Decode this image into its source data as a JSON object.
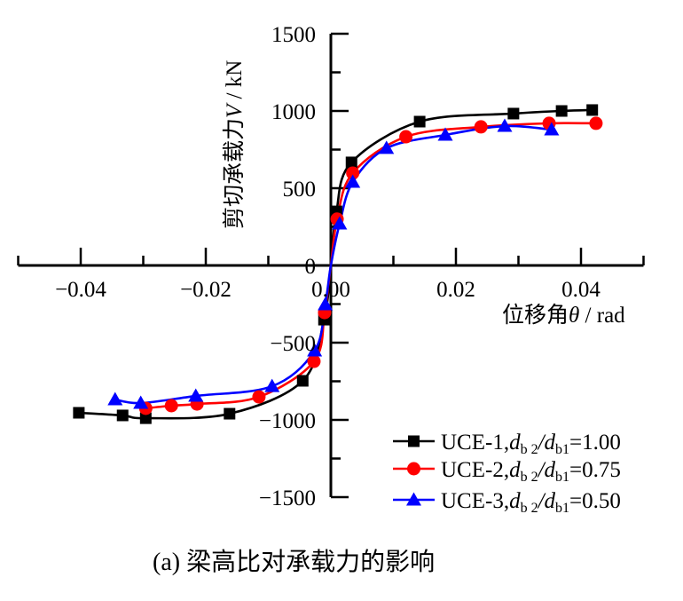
{
  "chart_data": {
    "type": "line",
    "title": "",
    "caption": "(a)  梁高比对承载力的影响",
    "xlabel": {
      "prefix": "位移角",
      "symbol": "θ",
      "unit": " / rad"
    },
    "ylabel": {
      "prefix": "剪切承载力",
      "symbol": "V",
      "unit": " / kN"
    },
    "xlim": [
      -0.05,
      0.05
    ],
    "ylim": [
      -1500,
      1500
    ],
    "xticks": [
      -0.04,
      -0.02,
      0.0,
      0.02,
      0.04
    ],
    "xtick_labels": [
      "−0.04",
      "−0.02",
      "0.00",
      "0.02",
      "0.04"
    ],
    "yticks": [
      1500,
      1000,
      500,
      0,
      -500,
      -1000,
      -1500
    ],
    "ytick_labels": [
      "1500",
      "1000",
      "500",
      "0",
      "−500",
      "−1000",
      "−1500"
    ],
    "grid": false,
    "legend_position": "bottom-right",
    "series": [
      {
        "name": "UCE-1",
        "label_prefix": "UCE-1,",
        "ratio": "1.00",
        "color": "#000000",
        "marker": "square",
        "x": [
          -0.0403,
          -0.0333,
          -0.0296,
          -0.0162,
          -0.0045,
          -0.0011,
          0.0009,
          0.0033,
          0.0142,
          0.0292,
          0.0369,
          0.0418
        ],
        "y": [
          -954,
          -971,
          -989,
          -960,
          -747,
          -351,
          350,
          667,
          931,
          983,
          1000,
          1006
        ]
      },
      {
        "name": "UCE-2",
        "label_prefix": "UCE-2,",
        "ratio": "0.75",
        "color": "#ff0000",
        "marker": "circle",
        "x": [
          -0.0296,
          -0.0255,
          -0.0214,
          -0.0115,
          -0.0027,
          -0.001,
          0.001,
          0.0035,
          0.012,
          0.024,
          0.0349,
          0.0424
        ],
        "y": [
          -925,
          -908,
          -897,
          -851,
          -621,
          -305,
          300,
          598,
          833,
          897,
          920,
          920
        ]
      },
      {
        "name": "UCE-3",
        "label_prefix": "UCE-3,",
        "ratio": "0.50",
        "color": "#0000ff",
        "marker": "triangle",
        "x": [
          -0.0345,
          -0.0304,
          -0.0216,
          -0.0094,
          -0.0026,
          -0.0009,
          0.0014,
          0.0035,
          0.0089,
          0.0183,
          0.0278,
          0.0353
        ],
        "y": [
          -868,
          -891,
          -845,
          -782,
          -552,
          -253,
          270,
          540,
          759,
          845,
          902,
          879
        ]
      }
    ],
    "legend_math": {
      "d": "d",
      "sub_b2": "b 2",
      "slash": "/",
      "sub_b1": "b1",
      "eq": "="
    }
  }
}
